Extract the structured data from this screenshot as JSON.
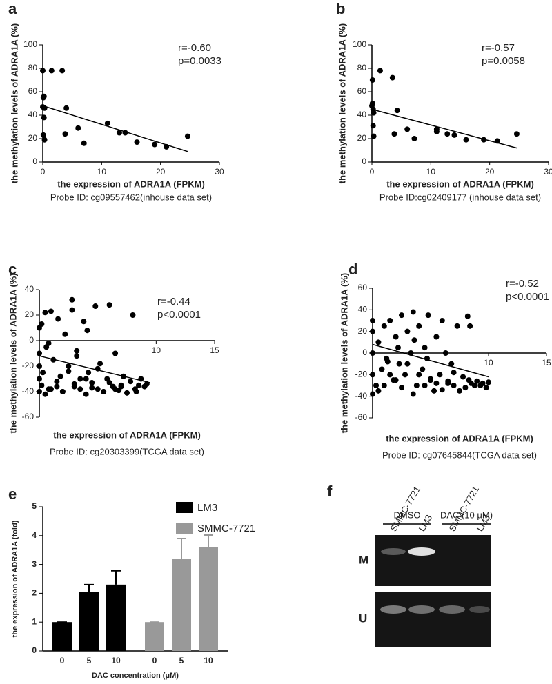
{
  "chart_data": [
    {
      "type": "scatter",
      "panel": "a",
      "x_label": "the expression of ADRA1A (FPKM)",
      "y_label": "the methylation levels of ADRA1A (%)",
      "caption": "Probe ID: cg09557462(inhouse data set)",
      "annotations": [
        "r=-0.60",
        "p=0.0033"
      ],
      "color": "#000000",
      "x": [
        0,
        0.2,
        0.1,
        0,
        0.3,
        0.2,
        0.1,
        0.3,
        1.5,
        3.3,
        3.8,
        4,
        6,
        7,
        11,
        13,
        14,
        16,
        19,
        21,
        24.6
      ],
      "values": [
        78,
        56,
        55,
        47,
        46,
        38,
        23,
        19,
        78,
        78,
        24,
        46,
        29,
        16,
        33,
        25,
        25,
        17,
        15,
        13,
        22
      ],
      "trend_line": {
        "x": [
          0,
          24.6
        ],
        "values": [
          48,
          9
        ]
      },
      "xlim": [
        0,
        30
      ],
      "xticks": [
        0,
        10,
        20,
        30
      ],
      "ylim": [
        0,
        100
      ],
      "yticks": [
        0,
        20,
        40,
        60,
        80,
        100
      ]
    },
    {
      "type": "scatter",
      "panel": "b",
      "x_label": "the expression of ADRA1A (FPKM)",
      "y_label": "the methylation levels of ADRA1A (%)",
      "caption": "Probe ID:cg02409177 (inhouse data set)",
      "annotations": [
        "r=-0.57",
        "p=0.0058"
      ],
      "color": "#000000",
      "x": [
        0,
        0.1,
        0.2,
        0.3,
        0.2,
        0.3,
        0.1,
        1.4,
        3.5,
        3.8,
        4.3,
        6,
        7.2,
        11,
        11,
        12.8,
        14,
        16,
        19,
        21.3,
        24.6
      ],
      "values": [
        48,
        50,
        45,
        42,
        31,
        22,
        70,
        78,
        72,
        24,
        44,
        28,
        20,
        28,
        26,
        24,
        23,
        19,
        19,
        18,
        24
      ],
      "trend_line": {
        "x": [
          0,
          24.6
        ],
        "values": [
          45,
          12
        ]
      },
      "xlim": [
        0,
        30
      ],
      "xticks": [
        0,
        10,
        20,
        30
      ],
      "ylim": [
        0,
        100
      ],
      "yticks": [
        0,
        20,
        40,
        60,
        80,
        100
      ]
    },
    {
      "type": "scatter",
      "panel": "c",
      "x_label": "the expression of ADRA1A (FPKM)",
      "y_label": "the methylation levels of ADRA1A (%)",
      "caption": "Probe ID: cg20303399(TCGA data set)",
      "annotations": [
        "r=-0.44",
        "p<0.0001"
      ],
      "color": "#000000",
      "x": [
        0,
        0,
        0,
        0,
        0,
        0.2,
        0.3,
        0.5,
        0.6,
        0.8,
        1,
        1.2,
        1.5,
        1.6,
        1.8,
        2,
        2.2,
        2.5,
        2.8,
        3,
        3.2,
        3.5,
        3.8,
        4,
        4.2,
        4.5,
        4.8,
        5,
        5.2,
        5.5,
        5.8,
        6,
        6.3,
        6.5,
        6.8,
        7,
        7.2,
        7.5,
        7.8,
        8,
        8.2,
        8.5,
        8.7,
        9,
        9.2,
        0.5,
        1,
        1.5,
        2,
        2.5,
        3,
        3.5,
        4,
        4.5,
        5,
        5.5,
        6,
        6.5,
        7,
        2.8,
        3.2,
        4.1,
        8.3,
        0.2,
        0.8
      ],
      "values": [
        -40,
        -30,
        -20,
        -10,
        10,
        -35,
        -25,
        22,
        -5,
        -38,
        23,
        -15,
        -32,
        17,
        -28,
        -40,
        5,
        -20,
        32,
        -36,
        -8,
        -30,
        15,
        -42,
        -25,
        -33,
        27,
        -38,
        -18,
        -40,
        -30,
        28,
        -36,
        -10,
        -39,
        -35,
        -28,
        -41,
        -32,
        20,
        -38,
        -35,
        -30,
        -36,
        -34,
        -42,
        -38,
        -36,
        -40,
        -24,
        -34,
        -38,
        -30,
        -37,
        -22,
        -40,
        -33,
        -38,
        -36,
        24,
        -12,
        8,
        -40,
        13,
        -2
      ],
      "trend_line": {
        "x": [
          0,
          9.5
        ],
        "values": [
          -12,
          -33
        ]
      },
      "xlim": [
        0,
        15
      ],
      "xticks": [
        10,
        15
      ],
      "ylim": [
        -60,
        40
      ],
      "yticks": [
        -60,
        -40,
        -20,
        0,
        20,
        40
      ]
    },
    {
      "type": "scatter",
      "panel": "d",
      "x_label": "the expression of ADRA1A (FPKM)",
      "y_label": "the methylation levels of ADRA1A (%)",
      "caption": "Probe ID: cg07645844(TCGA data set)",
      "annotations": [
        "r=-0.52",
        "p<0.0001"
      ],
      "color": "#000000",
      "x": [
        0,
        0,
        0,
        0,
        0,
        0.3,
        0.5,
        0.8,
        1,
        1.2,
        1.5,
        1.8,
        2,
        2.3,
        2.5,
        2.8,
        3,
        3.3,
        3.5,
        3.8,
        4,
        4.3,
        4.5,
        4.8,
        5,
        5.3,
        5.5,
        5.8,
        6,
        6.3,
        6.5,
        6.8,
        7,
        7.3,
        7.5,
        7.8,
        8,
        8.3,
        8.5,
        8.8,
        9,
        9.3,
        9.5,
        9.8,
        10,
        0.5,
        1,
        1.5,
        2,
        2.5,
        3,
        3.5,
        4,
        4.5,
        5,
        5.5,
        6,
        6.5,
        7,
        8.2,
        8.4,
        1.3,
        2.2,
        3.6,
        4.7
      ],
      "values": [
        -38,
        -20,
        0,
        20,
        30,
        -30,
        10,
        -15,
        25,
        -5,
        30,
        -25,
        15,
        -10,
        35,
        -20,
        20,
        0,
        38,
        -30,
        25,
        -15,
        5,
        35,
        -25,
        -35,
        15,
        -20,
        30,
        0,
        -28,
        -10,
        -30,
        25,
        -35,
        -22,
        -32,
        -25,
        -28,
        -30,
        -26,
        -30,
        -28,
        -32,
        -27,
        -35,
        -30,
        -20,
        -25,
        -32,
        -10,
        -38,
        -20,
        -30,
        -24,
        -28,
        -34,
        -26,
        -18,
        34,
        25,
        -8,
        5,
        12,
        -5
      ],
      "trend_line": {
        "x": [
          0,
          10
        ],
        "values": [
          8,
          -22
        ]
      },
      "xlim": [
        0,
        15
      ],
      "xticks": [
        10,
        15
      ],
      "ylim": [
        -60,
        60
      ],
      "yticks": [
        -60,
        -40,
        -20,
        0,
        20,
        40,
        60
      ]
    },
    {
      "type": "bar",
      "panel": "e",
      "x_label": "DAC concentration (μM)",
      "y_label": "the expression of ADRA1A (fold)",
      "categories": [
        "0",
        "5",
        "10"
      ],
      "series": [
        {
          "name": "LM3",
          "color": "#000000",
          "values": [
            1,
            2.05,
            2.3
          ],
          "errors": [
            0,
            0.25,
            0.48
          ]
        },
        {
          "name": "SMMC-7721",
          "color": "#999999",
          "values": [
            1,
            3.2,
            3.6
          ],
          "errors": [
            0,
            0.7,
            0.42
          ]
        }
      ],
      "ylim": [
        0,
        5
      ],
      "yticks": [
        0,
        1,
        2,
        3,
        4,
        5
      ]
    }
  ],
  "gel": {
    "panel": "f",
    "groups": [
      "DMSO",
      "DAC (10 μM)"
    ],
    "lanes": [
      "SMMC-7721",
      "LM3",
      "SMMC-7721",
      "LM3"
    ],
    "rows": [
      "M",
      "U"
    ]
  }
}
